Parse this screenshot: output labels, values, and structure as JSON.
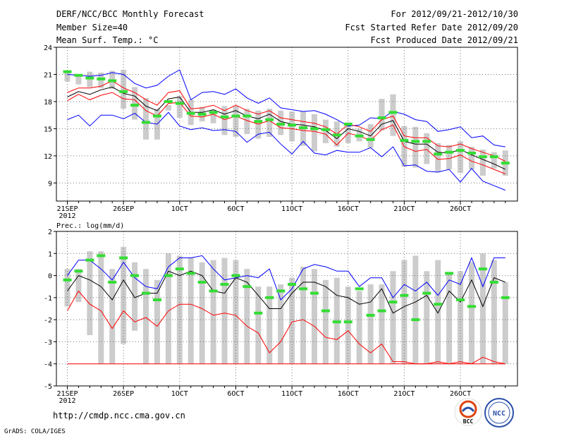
{
  "header": {
    "left_line1": "DERF/NCC/BCC Monthly Forecast",
    "left_line2": "Member Size=40",
    "left_line3": "Mean Surf. Temp.: °C",
    "right_line1": "For 2012/09/21-2012/10/30",
    "right_line2": "Fcst Started Refer Date 2012/09/20",
    "right_line3": "Fcst Produced Date 2012/09/21"
  },
  "footer": {
    "url": "http://cmdp.ncc.cma.gov.cn",
    "grads": "GrADS: COLA/IGES",
    "logo_left": "BCC",
    "logo_right": "NCC"
  },
  "colors": {
    "mean": "#000000",
    "max": "#0000ff",
    "min": "#ff0000",
    "obs_box": "#cccccc",
    "highlight": "#33dd33"
  },
  "chart_data": [
    {
      "type": "line",
      "title": "Mean Surf. Temp.: °C",
      "x_tick_labels": [
        "21SEP",
        "26SEP",
        "1OCT",
        "6OCT",
        "11OCT",
        "16OCT",
        "21OCT",
        "26OCT"
      ],
      "x_tick_days": [
        1,
        6,
        11,
        16,
        21,
        26,
        31,
        36
      ],
      "year_label": "2012",
      "ylim": [
        7,
        24
      ],
      "y_ticks": [
        9,
        12,
        15,
        18,
        21,
        24
      ],
      "days": [
        1,
        2,
        3,
        4,
        5,
        6,
        7,
        8,
        9,
        10,
        11,
        12,
        13,
        14,
        15,
        16,
        17,
        18,
        19,
        20,
        21,
        22,
        23,
        24,
        25,
        26,
        27,
        28,
        29,
        30,
        31,
        32,
        33,
        34,
        35,
        36,
        37,
        38,
        39,
        40
      ],
      "series": [
        {
          "name": "max",
          "color": "#0000ff",
          "values": [
            21,
            20.9,
            20.8,
            20.9,
            21.2,
            21,
            20,
            19.5,
            19.8,
            20.8,
            21.5,
            18.2,
            19,
            19.1,
            18.8,
            19.4,
            18.4,
            17.8,
            18.4,
            17.3,
            17.1,
            16.9,
            17,
            16.6,
            16,
            15.3,
            15.4,
            16.2,
            16.1,
            16.9,
            16.6,
            16,
            15.8,
            14.7,
            14.9,
            15.2,
            14,
            14.2,
            13.2,
            13
          ]
        },
        {
          "name": "upper",
          "color": "#ff0000",
          "values": [
            19,
            19.5,
            19.5,
            19.7,
            20.3,
            19.5,
            19,
            18.2,
            17.6,
            19,
            19.2,
            17.2,
            17.3,
            17.6,
            17,
            17.6,
            17,
            16.6,
            17,
            16.2,
            16,
            15.8,
            15.6,
            15.2,
            14.4,
            15.5,
            15.2,
            14.7,
            16,
            16.4,
            14.2,
            14,
            14,
            13.1,
            13,
            13.3,
            12.8,
            12.4,
            12,
            11.4
          ]
        },
        {
          "name": "mean",
          "color": "#000000",
          "values": [
            18.5,
            19.1,
            18.8,
            19.3,
            19.6,
            18.9,
            18.6,
            17.5,
            17,
            18.3,
            18.5,
            16.8,
            16.8,
            17.1,
            16.6,
            17,
            16.4,
            16.1,
            16.6,
            15.8,
            15.5,
            15.4,
            15.2,
            14.8,
            13.9,
            15,
            14.7,
            14.2,
            15.5,
            15.9,
            13.6,
            13.3,
            13.3,
            12.4,
            12.3,
            12.7,
            12.1,
            11.6,
            11.1,
            10.5
          ]
        },
        {
          "name": "lower",
          "color": "#ff0000",
          "values": [
            18.1,
            18.8,
            18.2,
            18.7,
            19,
            18.3,
            18.2,
            17,
            16.4,
            17.8,
            17.9,
            16.4,
            16.3,
            16.6,
            16,
            16.4,
            15.9,
            15.5,
            15.9,
            15.1,
            15,
            14.8,
            14.7,
            14.4,
            13.2,
            14.5,
            14.2,
            13.7,
            14.9,
            15.4,
            13,
            12.5,
            12.7,
            11.6,
            11.7,
            12.1,
            11.4,
            11,
            10.5,
            10
          ]
        },
        {
          "name": "min",
          "color": "#0000ff",
          "values": [
            16,
            16.5,
            15.3,
            16.5,
            16.5,
            16.1,
            16.7,
            15.7,
            15.5,
            16.8,
            15.3,
            14.9,
            15.1,
            14.8,
            14.9,
            14.7,
            13.5,
            14.4,
            14.6,
            13.3,
            12.2,
            13.6,
            12.3,
            12.1,
            12.6,
            12.4,
            12.4,
            12.9,
            11.9,
            13,
            10.9,
            11,
            10.3,
            10.2,
            10.5,
            9.1,
            10.6,
            9.2,
            8.7,
            8.2
          ]
        },
        {
          "name": "observed box top",
          "color": "#cccccc",
          "values": [
            21.2,
            20.9,
            21.3,
            21.2,
            21.4,
            21.5,
            19.6,
            18.4,
            17.2,
            17.6,
            18.6,
            18.2,
            17.4,
            17.1,
            17.5,
            17.5,
            17.2,
            17,
            17.2,
            17,
            16.9,
            16.9,
            16.6,
            16,
            15.8,
            15.7,
            15,
            15.5,
            18.3,
            18.8,
            15.3,
            15.2,
            14.5,
            13.4,
            13.2,
            13.6,
            13,
            12.7,
            12.4,
            12.6
          ]
        },
        {
          "name": "observed box bottom",
          "color": "#cccccc",
          "values": [
            20.2,
            19.9,
            19.6,
            19.5,
            19.4,
            17.2,
            16,
            13.8,
            13.8,
            17,
            16.2,
            15.4,
            15.8,
            15.6,
            14.3,
            14.1,
            14.4,
            13.9,
            14.1,
            14.3,
            13.6,
            13.1,
            12.5,
            13.4,
            13,
            13.4,
            13.6,
            12.9,
            14.8,
            14.2,
            10.8,
            10.7,
            11.1,
            10.2,
            10.5,
            10.1,
            10.5,
            9.8,
            10.6,
            9.8
          ]
        },
        {
          "name": "observed",
          "color": "#33dd33",
          "values": [
            21.3,
            20.9,
            20.6,
            20.5,
            20.3,
            19.1,
            17.6,
            15.7,
            16.4,
            18,
            17.8,
            16.7,
            16.6,
            16.8,
            16.3,
            16.4,
            16.4,
            15.8,
            16,
            15.5,
            15.4,
            15.1,
            15,
            14.9,
            14.3,
            15.5,
            14.2,
            13.8,
            16.2,
            16.8,
            13.7,
            13.6,
            13.6,
            12.2,
            12.4,
            12.6,
            12.3,
            11.9,
            11.9,
            11.2
          ]
        }
      ]
    },
    {
      "type": "line",
      "title": "Prec.: log(mm/d)",
      "x_tick_labels": [
        "21SEP",
        "26SEP",
        "1OCT",
        "6OCT",
        "11OCT",
        "16OCT",
        "21OCT",
        "26OCT"
      ],
      "x_tick_days": [
        1,
        6,
        11,
        16,
        21,
        26,
        31,
        36
      ],
      "year_label": "2012",
      "ylim": [
        -5,
        2
      ],
      "y_ticks": [
        -5,
        -4,
        -3,
        -2,
        -1,
        0,
        1,
        2
      ],
      "days": [
        1,
        2,
        3,
        4,
        5,
        6,
        7,
        8,
        9,
        10,
        11,
        12,
        13,
        14,
        15,
        16,
        17,
        18,
        19,
        20,
        21,
        22,
        23,
        24,
        25,
        26,
        27,
        28,
        29,
        30,
        31,
        32,
        33,
        34,
        35,
        36,
        37,
        38,
        39,
        40
      ],
      "series": [
        {
          "name": "max",
          "color": "#0000ff",
          "values": [
            0,
            0.7,
            0.7,
            0.3,
            -0.2,
            0.6,
            -0.1,
            -0.5,
            -0.6,
            0.4,
            0.8,
            0.8,
            0.9,
            0.3,
            -0.2,
            -0.1,
            0,
            -0.1,
            0.3,
            -1.1,
            -0.6,
            0.3,
            0.5,
            0.4,
            0.2,
            0.2,
            -0.5,
            -0.1,
            -0.1,
            -1.0,
            -0.4,
            -0.7,
            -0.3,
            -0.9,
            -0.2,
            -0.4,
            0.8,
            -0.5,
            0.8,
            0.8
          ]
        },
        {
          "name": "mean",
          "color": "#000000",
          "values": [
            -0.7,
            0,
            -0.2,
            -0.5,
            -1.1,
            -0.2,
            -1.0,
            -0.8,
            -0.8,
            0.2,
            0,
            0.2,
            0,
            -0.7,
            -0.8,
            -0.1,
            -0.3,
            -0.9,
            -1.5,
            -1.5,
            -0.8,
            -0.3,
            -0.3,
            -0.5,
            -0.9,
            -1.0,
            -1.3,
            -1.2,
            -0.6,
            -1.7,
            -1.4,
            -1.2,
            -0.9,
            -1.7,
            -0.7,
            -1.2,
            -0.2,
            -1.4,
            -0.1,
            -0.3
          ]
        },
        {
          "name": "upper-10pct",
          "color": "#ff0000",
          "values": [
            -1.6,
            -0.7,
            -1.3,
            -1.6,
            -2.4,
            -1.6,
            -2.1,
            -1.9,
            -2.3,
            -1.6,
            -1.3,
            -1.3,
            -1.5,
            -1.8,
            -1.7,
            -1.8,
            -2.3,
            -2.6,
            -3.5,
            -3.0,
            -2.1,
            -2.0,
            -2.3,
            -2.8,
            -2.9,
            -2.5,
            -3.1,
            -3.5,
            -3.1,
            -3.9,
            -3.9,
            -4.0,
            -4.0,
            -3.9,
            -4.0,
            -3.9,
            -4.0,
            -3.7,
            -3.9,
            -4.0
          ]
        },
        {
          "name": "min",
          "color": "#ff0000",
          "values": [
            -4,
            -4,
            -4,
            -4,
            -4,
            -4,
            -4,
            -4,
            -4,
            -4,
            -4,
            -4,
            -4,
            -4,
            -4,
            -4,
            -4,
            -4,
            -4,
            -4,
            -4,
            -4,
            -4,
            -4,
            -4,
            -4,
            -4,
            -4,
            -4,
            -4,
            -4,
            -4,
            -4,
            -4,
            -4,
            -4,
            -4,
            -4,
            -4,
            -4
          ]
        },
        {
          "name": "observed box top",
          "color": "#cccccc",
          "values": [
            0.3,
            0.3,
            1.1,
            1.1,
            0.3,
            1.3,
            0.6,
            0.3,
            -0.2,
            1.0,
            0.9,
            0.8,
            0.6,
            0.7,
            0.8,
            0.7,
            0.3,
            -0.5,
            -0.5,
            -0.4,
            -0.1,
            0.4,
            0.3,
            -0.2,
            -0.1,
            -0.5,
            -0.7,
            -0.4,
            -0.4,
            0.2,
            0.7,
            0.9,
            0.2,
            0.7,
            0.1,
            0.2,
            0.6,
            1.0,
            0.7,
            -0.3
          ]
        },
        {
          "name": "observed box bottom",
          "color": "#cccccc",
          "values": [
            -1.4,
            -1.2,
            -2.7,
            -4,
            -4,
            -3.1,
            -2.5,
            -4,
            -4,
            -4,
            -4,
            -4,
            -4,
            -4,
            -4,
            -4,
            -4,
            -4,
            -4,
            -4,
            -4,
            -4,
            -4,
            -4,
            -4,
            -4,
            -4,
            -4,
            -4,
            -4,
            -4,
            -4,
            -4,
            -4,
            -4,
            -4,
            -4,
            -4,
            -4,
            -4
          ]
        },
        {
          "name": "observed",
          "color": "#33dd33",
          "values": [
            -0.2,
            0.2,
            0.7,
            0.9,
            -0.3,
            0.8,
            0,
            -0.8,
            -1.1,
            0,
            0.3,
            0.1,
            -0.3,
            -0.7,
            -0.4,
            0,
            -0.5,
            -1.7,
            -1.0,
            -0.7,
            -0.4,
            -0.6,
            -0.8,
            -1.6,
            -2.1,
            -2.1,
            -0.6,
            -1.8,
            -1.6,
            -1.2,
            -0.9,
            -2.0,
            -0.8,
            -1.3,
            0.1,
            -1.1,
            -1.4,
            0.3,
            -0.3,
            -1.0
          ]
        }
      ]
    }
  ]
}
